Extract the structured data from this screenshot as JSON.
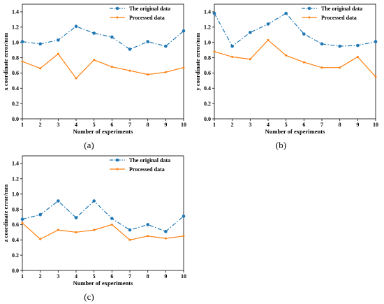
{
  "chart_data": [
    {
      "type": "line",
      "caption": "(a)",
      "xlabel": "Number of experiments",
      "ylabel": "x coordinate error/mm",
      "x": [
        1,
        2,
        3,
        4,
        5,
        6,
        7,
        8,
        9,
        10
      ],
      "xlim": [
        1,
        10
      ],
      "ylim": [
        0,
        1.5
      ],
      "yticks": [
        0.0,
        0.2,
        0.4,
        0.6,
        0.8,
        1.0,
        1.2,
        1.4
      ],
      "grid": false,
      "legend": "top-right",
      "series": [
        {
          "name": "The original data",
          "color": "#1f77b4",
          "style": "dash-dot",
          "marker": "circle",
          "values": [
            1.01,
            0.98,
            1.03,
            1.21,
            1.12,
            1.07,
            0.91,
            1.01,
            0.95,
            1.15
          ]
        },
        {
          "name": "Processed data",
          "color": "#ff7f0e",
          "style": "solid",
          "marker": "dot",
          "values": [
            0.75,
            0.66,
            0.85,
            0.53,
            0.77,
            0.68,
            0.63,
            0.58,
            0.61,
            0.67
          ]
        }
      ]
    },
    {
      "type": "line",
      "caption": "(b)",
      "xlabel": "Number of experiments",
      "ylabel": "y coordinate error/mm",
      "x": [
        1,
        2,
        3,
        4,
        5,
        6,
        7,
        8,
        9,
        10
      ],
      "xlim": [
        1,
        10
      ],
      "ylim": [
        0,
        1.5
      ],
      "yticks": [
        0.0,
        0.2,
        0.4,
        0.6,
        0.8,
        1.0,
        1.2,
        1.4
      ],
      "grid": false,
      "legend": "top-right",
      "series": [
        {
          "name": "The original data",
          "color": "#1f77b4",
          "style": "dash-dot",
          "marker": "circle",
          "values": [
            1.38,
            0.95,
            1.13,
            1.24,
            1.38,
            1.11,
            0.98,
            0.95,
            0.96,
            1.01
          ]
        },
        {
          "name": "Processed data",
          "color": "#ff7f0e",
          "style": "solid",
          "marker": "dot",
          "values": [
            0.88,
            0.81,
            0.78,
            1.03,
            0.83,
            0.74,
            0.67,
            0.67,
            0.81,
            0.55
          ]
        }
      ]
    },
    {
      "type": "line",
      "caption": "(c)",
      "xlabel": "Number of experiments",
      "ylabel": "z coordinate error/mm",
      "x": [
        1,
        2,
        3,
        4,
        5,
        6,
        7,
        8,
        9,
        10
      ],
      "xlim": [
        1,
        10
      ],
      "ylim": [
        0,
        1.5
      ],
      "yticks": [
        0.0,
        0.2,
        0.4,
        0.6,
        0.8,
        1.0,
        1.2,
        1.4
      ],
      "grid": false,
      "legend": "top-right",
      "series": [
        {
          "name": "The original data",
          "color": "#1f77b4",
          "style": "dash-dot",
          "marker": "circle",
          "values": [
            0.67,
            0.73,
            0.91,
            0.69,
            0.91,
            0.68,
            0.53,
            0.6,
            0.51,
            0.71
          ]
        },
        {
          "name": "Processed data",
          "color": "#ff7f0e",
          "style": "solid",
          "marker": "dot",
          "values": [
            0.62,
            0.41,
            0.53,
            0.5,
            0.53,
            0.6,
            0.4,
            0.45,
            0.42,
            0.45
          ]
        }
      ]
    }
  ]
}
